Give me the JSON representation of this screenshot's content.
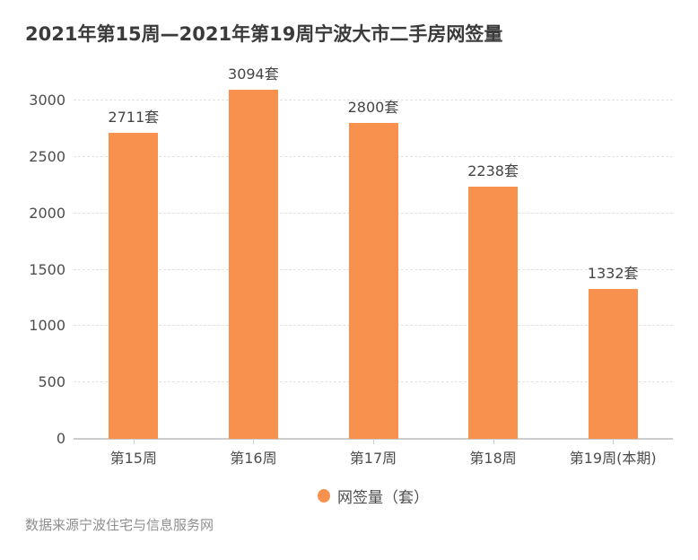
{
  "title": "2021年第15周—2021年第19周宁波大市二手房网签量",
  "source_note": "数据来源宁波住宅与信息服务网",
  "legend": {
    "items": [
      {
        "label": "网签量（套）",
        "marker": "circle",
        "color": "#f8914d"
      }
    ]
  },
  "colors": {
    "bar": "#f8914d",
    "title_text": "#3b3b3b",
    "axis_label": "#4d4d4d",
    "value_label": "#454545",
    "gridline": "#e2e2e2",
    "axis_line": "#cccccc",
    "source_text": "#8f8f8f",
    "background": "#ffffff"
  },
  "chart_data": {
    "type": "bar",
    "title": "2021年第15周—2021年第19周宁波大市二手房网签量",
    "categories": [
      "第15周",
      "第16周",
      "第17周",
      "第18周",
      "第19周(本期)"
    ],
    "values": [
      2711,
      3094,
      2800,
      2238,
      1332
    ],
    "data_labels": [
      "2711套",
      "3094套",
      "2800套",
      "2238套",
      "1332套"
    ],
    "series_name": "网签量（套）",
    "unit": "套",
    "xlabel": "",
    "ylabel": "",
    "ylim": [
      0,
      3000
    ],
    "yticks": [
      0,
      500,
      1000,
      1500,
      2000,
      2500,
      3000
    ],
    "grid": {
      "horizontal": true,
      "style": "dashed"
    },
    "legend_position": "bottom-center",
    "bar_color": "#f8914d"
  }
}
